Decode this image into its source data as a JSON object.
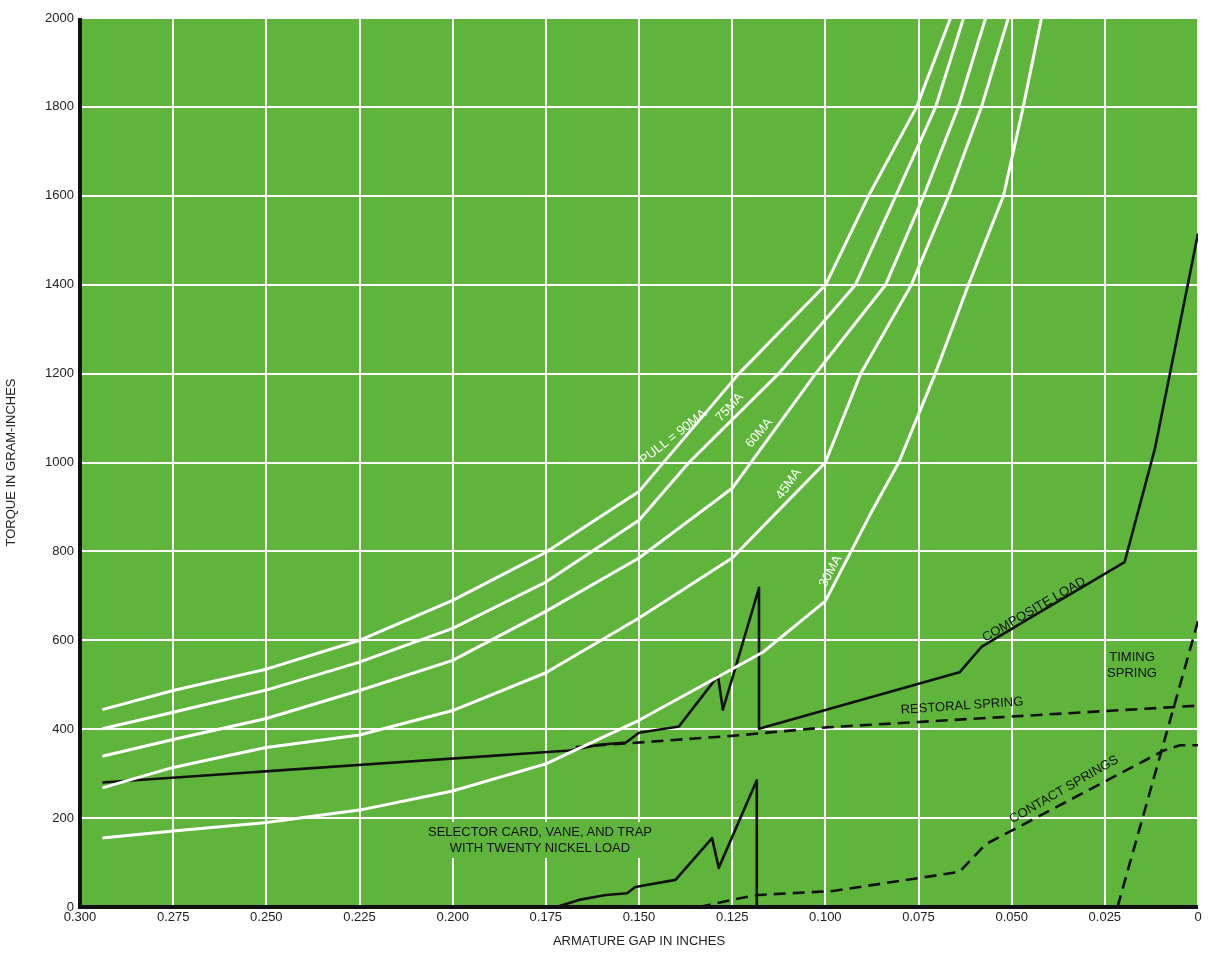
{
  "chart_data": {
    "type": "line",
    "xlabel": "ARMATURE GAP IN INCHES",
    "ylabel": "TORQUE IN GRAM-INCHES",
    "xlim": [
      0.3,
      0
    ],
    "xticks": [
      {
        "value": 0.3,
        "label": "0.300"
      },
      {
        "value": 0.275,
        "label": "0.275"
      },
      {
        "value": 0.25,
        "label": "0.250"
      },
      {
        "value": 0.225,
        "label": "0.225"
      },
      {
        "value": 0.2,
        "label": "0.200"
      },
      {
        "value": 0.175,
        "label": "0.175"
      },
      {
        "value": 0.15,
        "label": "0.150"
      },
      {
        "value": 0.125,
        "label": "0.125"
      },
      {
        "value": 0.1,
        "label": "0.100"
      },
      {
        "value": 0.075,
        "label": "0.075"
      },
      {
        "value": 0.05,
        "label": "0.050"
      },
      {
        "value": 0.025,
        "label": "0.025"
      },
      0
    ],
    "ylim": [
      0,
      2000
    ],
    "yticks": [
      0,
      200,
      400,
      600,
      800,
      1000,
      1200,
      1400,
      1600,
      1800,
      2000
    ],
    "grid": true,
    "marker": "none",
    "series": [
      {
        "color": "#ffffff",
        "x": [
          0.294,
          0.275,
          0.25,
          0.225,
          0.2,
          0.175,
          0.15,
          0.1232,
          0.0999,
          0.0884,
          0.0755,
          0.0664
        ],
        "values": [
          444,
          487,
          535,
          600,
          690,
          798,
          935,
          1200,
          1400,
          1600,
          1800,
          2000
        ]
      },
      {
        "color": "#ffffff",
        "x": [
          0.294,
          0.275,
          0.25,
          0.225,
          0.2,
          0.175,
          0.15,
          0.1366,
          0.1125,
          0.0919,
          0.0811,
          0.0704,
          0.0629
        ],
        "values": [
          401,
          438,
          488,
          551,
          627,
          731,
          870,
          1000,
          1200,
          1400,
          1600,
          1800,
          2000
        ]
      },
      {
        "color": "#ffffff",
        "x": [
          0.294,
          0.275,
          0.25,
          0.225,
          0.2,
          0.175,
          0.15,
          0.125,
          0.1026,
          0.0838,
          0.0736,
          0.0643,
          0.057
        ],
        "values": [
          339,
          377,
          424,
          487,
          555,
          665,
          785,
          942,
          1200,
          1400,
          1600,
          1800,
          2000
        ]
      },
      {
        "color": "#ffffff",
        "x": [
          0.294,
          0.275,
          0.25,
          0.225,
          0.2,
          0.175,
          0.15,
          0.125,
          0.1,
          0.0905,
          0.0769,
          0.0669,
          0.0581,
          0.0509
        ],
        "values": [
          268,
          314,
          359,
          387,
          442,
          527,
          650,
          785,
          1000,
          1200,
          1400,
          1600,
          1800,
          2000
        ]
      },
      {
        "color": "#ffffff",
        "x": [
          0.294,
          0.275,
          0.25,
          0.225,
          0.2,
          0.175,
          0.15,
          0.1168,
          0.1,
          0.0876,
          0.0803,
          0.0705,
          0.0616,
          0.0522,
          0.0469,
          0.042
        ],
        "values": [
          155,
          171,
          190,
          218,
          261,
          322,
          420,
          573,
          688,
          889,
          1000,
          1200,
          1400,
          1600,
          1800,
          2000
        ]
      },
      {
        "color": "#111111",
        "x": [
          0.294,
          0.1687,
          0.1607,
          0.1535,
          0.15,
          0.1393,
          0.1288,
          0.1275,
          0.1245,
          0.1178,
          0.1178,
          0.064,
          0.058,
          0.0197,
          0.0116,
          0
        ],
        "values": [
          280,
          352,
          365,
          370,
          392,
          406,
          520,
          444,
          528,
          718,
          401,
          528,
          586,
          776,
          1030,
          1515
        ]
      },
      {
        "color": "#111111",
        "line_style": "dashed",
        "x": [
          0.167,
          0.125,
          0.1,
          0
        ],
        "values": [
          360,
          385,
          404,
          453
        ]
      },
      {
        "color": "#111111",
        "line_style": "dashed",
        "x": [
          0.0216,
          0
        ],
        "values": [
          0,
          643
        ]
      },
      {
        "color": "#111111",
        "line_style": "dashed",
        "x": [
          0.1339,
          0.124,
          0.118,
          0.098,
          0.064,
          0.057,
          0.0092,
          0.0048,
          0
        ],
        "values": [
          0,
          18,
          27,
          36,
          79,
          141,
          352,
          364,
          364
        ]
      },
      {
        "color": "#111111",
        "x": [
          0.1722,
          0.1661,
          0.1589,
          0.1532,
          0.151,
          0.1402,
          0.1304,
          0.1286,
          0.1184,
          0.1184
        ],
        "values": [
          0,
          16,
          27,
          31,
          45,
          61,
          155,
          88,
          285,
          0
        ]
      }
    ],
    "annotations": [
      "PULL = 90MA",
      "75MA",
      "60MA",
      "45MA",
      "30MA",
      "COMPOSITE LOAD",
      "RESTORAL SPRING",
      "TIMING\nSPRING",
      "CONTACT SPRINGS",
      "SELECTOR CARD, VANE, AND TRAP\nWITH TWENTY NICKEL LOAD"
    ]
  }
}
